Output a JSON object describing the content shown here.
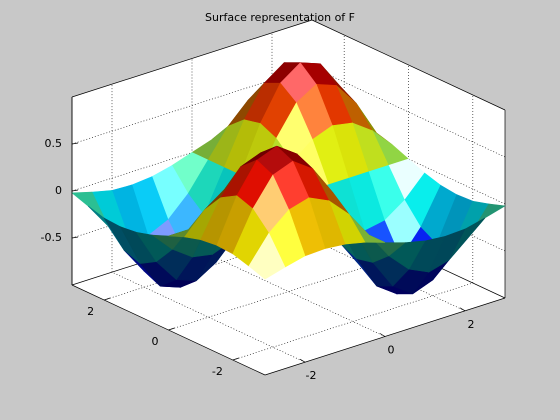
{
  "chart_data": {
    "type": "surface",
    "title": "Surface representation of F",
    "x": [
      -3,
      -2.5,
      -2,
      -1.5,
      -1,
      -0.5,
      0,
      0.5,
      1,
      1.5,
      2,
      2.5,
      3
    ],
    "y": [
      -3,
      -2.5,
      -2,
      -1.5,
      -1,
      -0.5,
      0,
      0.5,
      1,
      1.5,
      2,
      2.5,
      3
    ],
    "z": [
      [
        0.02,
        0.08,
        0.13,
        0.14,
        0.12,
        0.07,
        0,
        -0.07,
        -0.12,
        -0.14,
        -0.13,
        -0.08,
        -0.02
      ],
      [
        0.08,
        0.36,
        0.54,
        0.6,
        0.5,
        0.29,
        0,
        -0.29,
        -0.5,
        -0.6,
        -0.54,
        -0.36,
        -0.08
      ],
      [
        0.13,
        0.54,
        0.83,
        0.91,
        0.76,
        0.44,
        0,
        -0.44,
        -0.76,
        -0.91,
        -0.83,
        -0.54,
        -0.13
      ],
      [
        0.14,
        0.6,
        0.91,
        0.99,
        0.84,
        0.48,
        0,
        -0.48,
        -0.84,
        -0.99,
        -0.91,
        -0.6,
        -0.14
      ],
      [
        0.12,
        0.5,
        0.76,
        0.84,
        0.71,
        0.4,
        0,
        -0.4,
        -0.71,
        -0.84,
        -0.76,
        -0.5,
        -0.12
      ],
      [
        0.07,
        0.29,
        0.44,
        0.48,
        0.4,
        0.23,
        0,
        -0.23,
        -0.4,
        -0.48,
        -0.44,
        -0.29,
        -0.07
      ],
      [
        0,
        0,
        0,
        0,
        0,
        0,
        0,
        0,
        0,
        0,
        0,
        0,
        0
      ],
      [
        -0.07,
        -0.29,
        -0.44,
        -0.48,
        -0.4,
        -0.23,
        0,
        0.23,
        0.4,
        0.48,
        0.44,
        0.29,
        0.07
      ],
      [
        -0.12,
        -0.5,
        -0.76,
        -0.84,
        -0.71,
        -0.4,
        0,
        0.4,
        0.71,
        0.84,
        0.76,
        0.5,
        0.12
      ],
      [
        -0.14,
        -0.6,
        -0.91,
        -0.99,
        -0.84,
        -0.48,
        0,
        0.48,
        0.84,
        0.99,
        0.91,
        0.6,
        0.14
      ],
      [
        -0.13,
        -0.54,
        -0.83,
        -0.91,
        -0.76,
        -0.44,
        0,
        0.44,
        0.76,
        0.91,
        0.83,
        0.54,
        0.13
      ],
      [
        -0.08,
        -0.36,
        -0.54,
        -0.6,
        -0.5,
        -0.29,
        0,
        0.29,
        0.5,
        0.6,
        0.54,
        0.36,
        0.08
      ],
      [
        -0.02,
        -0.08,
        -0.13,
        -0.14,
        -0.12,
        -0.07,
        0,
        0.07,
        0.12,
        0.14,
        0.13,
        0.08,
        0.02
      ]
    ],
    "xlim": [
      -3,
      3
    ],
    "ylim": [
      -3,
      3
    ],
    "zlim": [
      -1,
      1
    ],
    "xticks": [
      -2,
      0,
      2
    ],
    "yticks": [
      -2,
      0,
      2
    ],
    "zticks": [
      -0.5,
      0,
      0.5
    ],
    "grid": true,
    "colormap": "jet"
  }
}
